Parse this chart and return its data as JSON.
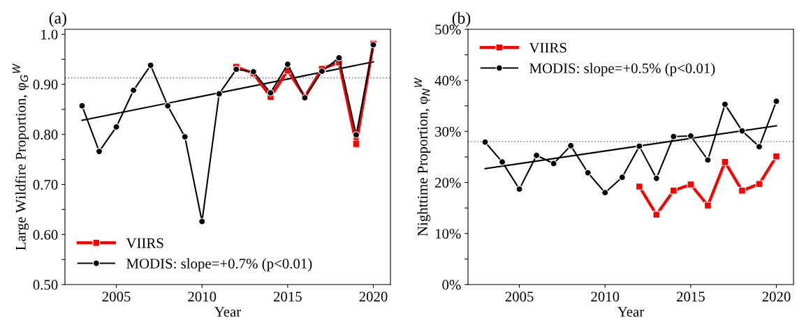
{
  "chart_data": [
    {
      "type": "line",
      "title": "(a)",
      "xlabel": "Year",
      "ylabel": "Large Wildfire Proportion, φ$_{G}$$^{W}$",
      "xlim": [
        2002,
        2021
      ],
      "xticks": [
        2005,
        2010,
        2015,
        2020
      ],
      "ylim": [
        0.5,
        1.01
      ],
      "yticks": [
        {
          "value": 0.5,
          "label": "0.50"
        },
        {
          "value": 0.55,
          "label": null
        },
        {
          "value": 0.6,
          "label": "0.60"
        },
        {
          "value": 0.65,
          "label": null
        },
        {
          "value": 0.7,
          "label": "0.70"
        },
        {
          "value": 0.75,
          "label": null
        },
        {
          "value": 0.8,
          "label": "0.80"
        },
        {
          "value": 0.85,
          "label": null
        },
        {
          "value": 0.9,
          "label": "0.90"
        },
        {
          "value": 0.95,
          "label": null
        },
        {
          "value": 1.0,
          "label": "1.0"
        }
      ],
      "legend": "bottom left",
      "grid": false,
      "series": [
        {
          "name": "VIIRS",
          "color": "#ff0000",
          "marker": "square",
          "x": [
            2012,
            2013,
            2014,
            2015,
            2016,
            2017,
            2018,
            2019,
            2020
          ],
          "values": [
            0.935,
            0.922,
            0.875,
            0.928,
            0.875,
            0.931,
            0.944,
            0.781,
            0.981
          ]
        },
        {
          "name": "MODIS: slope=+0.7% (p<0.01)",
          "color": "#000000",
          "marker": "circle",
          "x": [
            2003,
            2004,
            2005,
            2006,
            2007,
            2008,
            2009,
            2010,
            2011,
            2012,
            2013,
            2014,
            2015,
            2016,
            2017,
            2018,
            2019,
            2020
          ],
          "values": [
            0.857,
            0.766,
            0.815,
            0.888,
            0.938,
            0.857,
            0.795,
            0.626,
            0.881,
            0.93,
            0.925,
            0.883,
            0.94,
            0.873,
            0.926,
            0.953,
            0.799,
            0.979
          ]
        },
        {
          "type": "line",
          "color": "#000000",
          "marker": "none",
          "x": [
            2003,
            2020
          ],
          "values": [
            0.828,
            0.945
          ]
        }
      ],
      "ref_lines": [
        {
          "axis": "y",
          "value": 0.913,
          "color": "#808080",
          "line_style": "dotted"
        }
      ]
    },
    {
      "type": "line",
      "title": "(b)",
      "xlabel": "Year",
      "ylabel": "Nighttime Proportion, φ$_{N}$$^{W}$",
      "xlim": [
        2002,
        2021
      ],
      "xticks": [
        2005,
        2010,
        2015,
        2020
      ],
      "ylim": [
        0,
        50
      ],
      "yticks": [
        {
          "value": 0,
          "label": "0%"
        },
        {
          "value": 5,
          "label": null
        },
        {
          "value": 10,
          "label": "10%"
        },
        {
          "value": 15,
          "label": null
        },
        {
          "value": 20,
          "label": "20%"
        },
        {
          "value": 25,
          "label": null
        },
        {
          "value": 30,
          "label": "30%"
        },
        {
          "value": 35,
          "label": null
        },
        {
          "value": 40,
          "label": "40%"
        },
        {
          "value": 45,
          "label": null
        },
        {
          "value": 50,
          "label": "50%"
        }
      ],
      "legend": "top left",
      "grid": false,
      "series": [
        {
          "name": "VIIRS",
          "color": "#ff0000",
          "marker": "square",
          "x": [
            2012,
            2013,
            2014,
            2015,
            2016,
            2017,
            2018,
            2019,
            2020
          ],
          "values": [
            19.2,
            13.7,
            18.4,
            19.6,
            15.5,
            24.0,
            18.4,
            19.7,
            25.1
          ]
        },
        {
          "name": "MODIS: slope=+0.5% (p<0.01)",
          "color": "#000000",
          "marker": "circle",
          "x": [
            2003,
            2004,
            2005,
            2006,
            2007,
            2008,
            2009,
            2010,
            2011,
            2012,
            2013,
            2014,
            2015,
            2016,
            2017,
            2018,
            2019,
            2020
          ],
          "values": [
            27.9,
            24.0,
            18.7,
            25.3,
            23.7,
            27.2,
            21.9,
            18.0,
            21.0,
            27.1,
            20.8,
            29.0,
            29.1,
            24.4,
            35.3,
            30.1,
            27.0,
            35.9
          ]
        },
        {
          "type": "line",
          "color": "#000000",
          "marker": "none",
          "x": [
            2003,
            2020
          ],
          "values": [
            22.7,
            31.1
          ]
        }
      ],
      "ref_lines": [
        {
          "axis": "y",
          "value": 28,
          "color": "#808080",
          "line_style": "dotted"
        }
      ]
    }
  ]
}
